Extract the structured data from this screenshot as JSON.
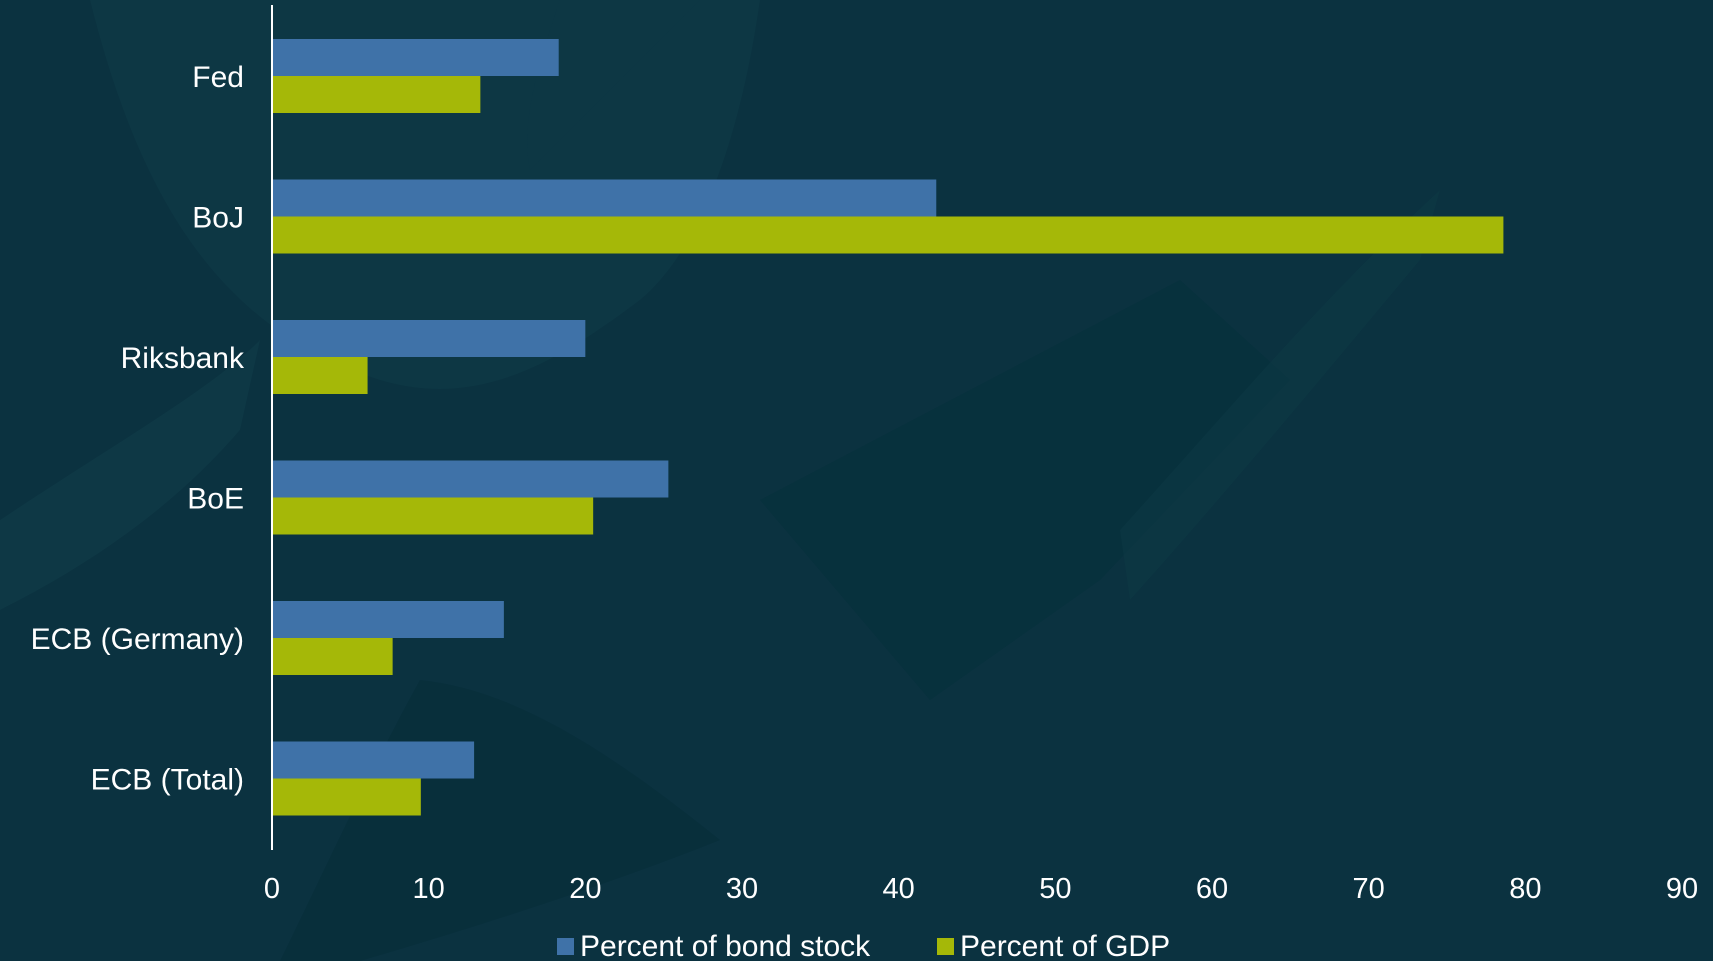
{
  "chart_data": {
    "type": "bar",
    "orientation": "horizontal",
    "categories": [
      "Fed",
      "BoJ",
      "Riksbank",
      "BoE",
      "ECB (Germany)",
      "ECB (Total)"
    ],
    "series": [
      {
        "name": "Percent of bond stock",
        "color": "#3f72a8",
        "values": [
          18.3,
          42.4,
          20.0,
          25.3,
          14.8,
          12.9
        ]
      },
      {
        "name": "Percent of GDP",
        "color": "#a5b808",
        "values": [
          13.3,
          78.6,
          6.1,
          20.5,
          7.7,
          9.5
        ]
      }
    ],
    "xlim": [
      0,
      90
    ],
    "xticks": [
      "0",
      "10",
      "20",
      "30",
      "40",
      "50",
      "60",
      "70",
      "80",
      "90"
    ],
    "grid": false,
    "legend_position": "bottom",
    "colors": {
      "background": "#0b3240",
      "text": "#ffffff",
      "axis": "#ffffff"
    }
  }
}
